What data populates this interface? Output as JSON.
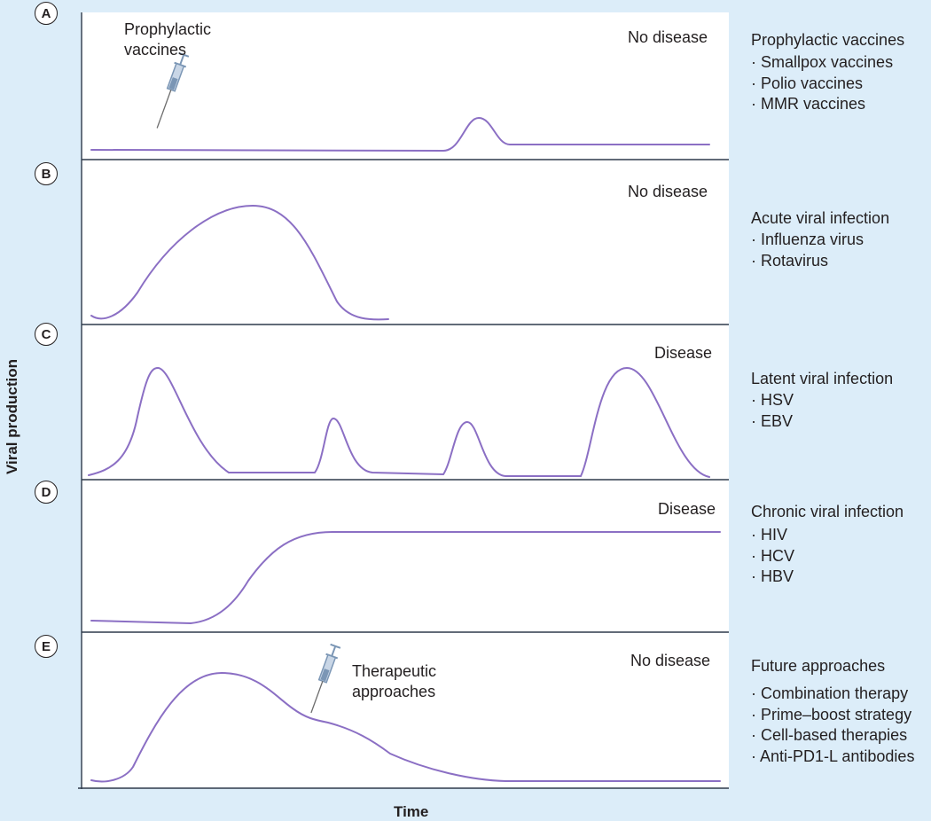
{
  "axes": {
    "y_label": "Viral production",
    "x_label": "Time"
  },
  "panels": [
    {
      "letter": "A",
      "outcome": "No disease",
      "annotation": "Prophylactic vaccines",
      "category": "Prophylactic vaccines",
      "examples": [
        "Smallpox vaccines",
        "Polio vaccines",
        "MMR vaccines"
      ]
    },
    {
      "letter": "B",
      "outcome": "No disease",
      "category": "Acute viral infection",
      "examples": [
        "Influenza virus",
        "Rotavirus"
      ]
    },
    {
      "letter": "C",
      "outcome": "Disease",
      "category": "Latent viral infection",
      "examples": [
        "HSV",
        "EBV"
      ]
    },
    {
      "letter": "D",
      "outcome": "Disease",
      "category": "Chronic viral infection",
      "examples": [
        "HIV",
        "HCV",
        "HBV"
      ]
    },
    {
      "letter": "E",
      "outcome": "No disease",
      "annotation": "Therapeutic approaches",
      "category": "Future approaches",
      "examples": [
        "Combination therapy",
        "Prime–boost strategy",
        "Cell-based therapies",
        "Anti-PD1-L antibodies"
      ]
    }
  ],
  "colors": {
    "background": "#dcedf9",
    "curve": "#8b6fc4",
    "axis": "#2e3a4b",
    "syringe": "#7b96b5"
  },
  "icons": {
    "vaccine": "syringe-icon"
  }
}
